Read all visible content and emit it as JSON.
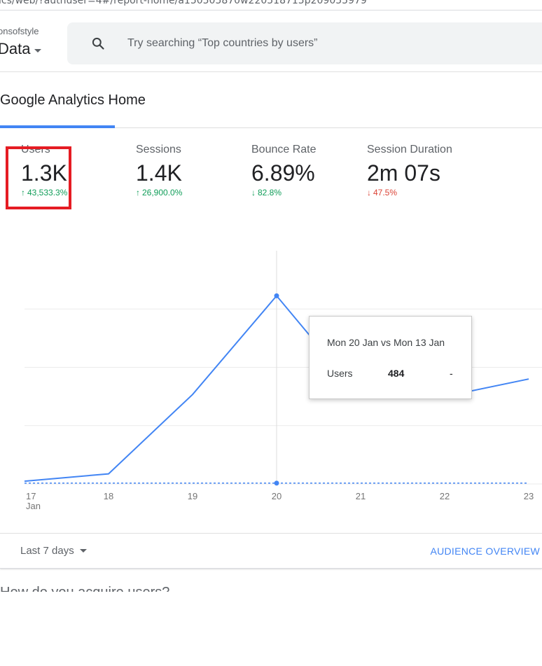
{
  "browser": {
    "url_fragment": "ics/web/?authuser=4#/report-home/a150505870w220518715p209055979"
  },
  "header": {
    "account_name": "onsofstyle",
    "property_name": "Data",
    "search_placeholder": "Try searching “Top countries by users”"
  },
  "page": {
    "title": "Google Analytics Home"
  },
  "metrics": [
    {
      "label": "Users",
      "value": "1.3K",
      "delta": "43,533.3%",
      "direction": "up"
    },
    {
      "label": "Sessions",
      "value": "1.4K",
      "delta": "26,900.0%",
      "direction": "up"
    },
    {
      "label": "Bounce Rate",
      "value": "6.89%",
      "delta": "82.8%",
      "direction": "down"
    },
    {
      "label": "Session Duration",
      "value": "2m 07s",
      "delta": "47.5%",
      "direction": "down"
    }
  ],
  "chart_data": {
    "type": "line",
    "x": [
      "17",
      "18",
      "19",
      "20",
      "21",
      "22",
      "23"
    ],
    "x_sublabel": "Jan",
    "series": [
      {
        "name": "Users",
        "values": [
          7,
          26,
          230,
          484,
          225,
          225,
          270
        ],
        "style": "solid"
      },
      {
        "name": "Comparison",
        "values": [
          2,
          2,
          2,
          2,
          2,
          2,
          2
        ],
        "style": "dashed"
      }
    ],
    "ylim": [
      0,
      600
    ],
    "grid": true,
    "highlighted_index": 3
  },
  "tooltip": {
    "title": "Mon 20 Jan vs Mon 13 Jan",
    "metric_label": "Users",
    "metric_value": "484",
    "compare_value": "-"
  },
  "footer": {
    "date_range": "Last 7 days",
    "overview_link": "AUDIENCE OVERVIEW"
  },
  "next_section_partial": "How do you acquire users?",
  "colors": {
    "accent": "#4285f4",
    "up": "#0f9d58",
    "down": "#db4437",
    "highlight_box": "#e51c23"
  }
}
